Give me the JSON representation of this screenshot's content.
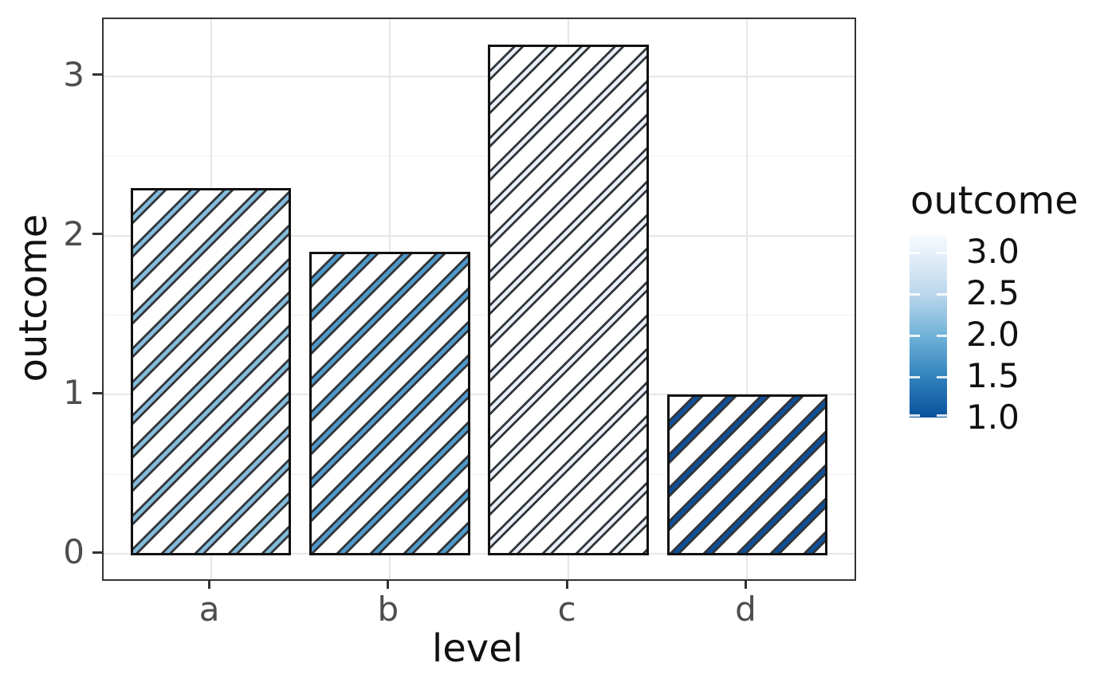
{
  "chart_data": {
    "type": "bar",
    "title": "",
    "xlabel": "level",
    "ylabel": "outcome",
    "categories": [
      "a",
      "b",
      "c",
      "d"
    ],
    "values": [
      2.3,
      1.9,
      3.2,
      1.0
    ],
    "ylim": [
      0,
      3.36
    ],
    "yticks": [
      0,
      1,
      2,
      3
    ],
    "yminor": [
      0.5,
      1.5,
      2.5
    ],
    "grid": "light gray horizontal major+minor, vertical major at category centers",
    "bar_style": {
      "fill": "#ffffff",
      "edge_color": "#111111",
      "hatch_pattern": "/",
      "hatch_line_color": "#33363a",
      "stripe_colors": [
        "#85bcdb",
        "#4e9acc",
        "#e9f0fa",
        "#0d509c"
      ]
    },
    "legend": {
      "title": "outcome",
      "type": "colorbar",
      "position": "right",
      "domain": [
        1.0,
        3.2
      ],
      "tick_values": [
        3.0,
        2.5,
        2.0,
        1.5,
        1.0
      ],
      "tick_labels": [
        "3.0",
        "2.5",
        "2.0",
        "1.5",
        "1.0"
      ],
      "color_low": "#08519c",
      "color_high": "#f7fbff"
    }
  }
}
